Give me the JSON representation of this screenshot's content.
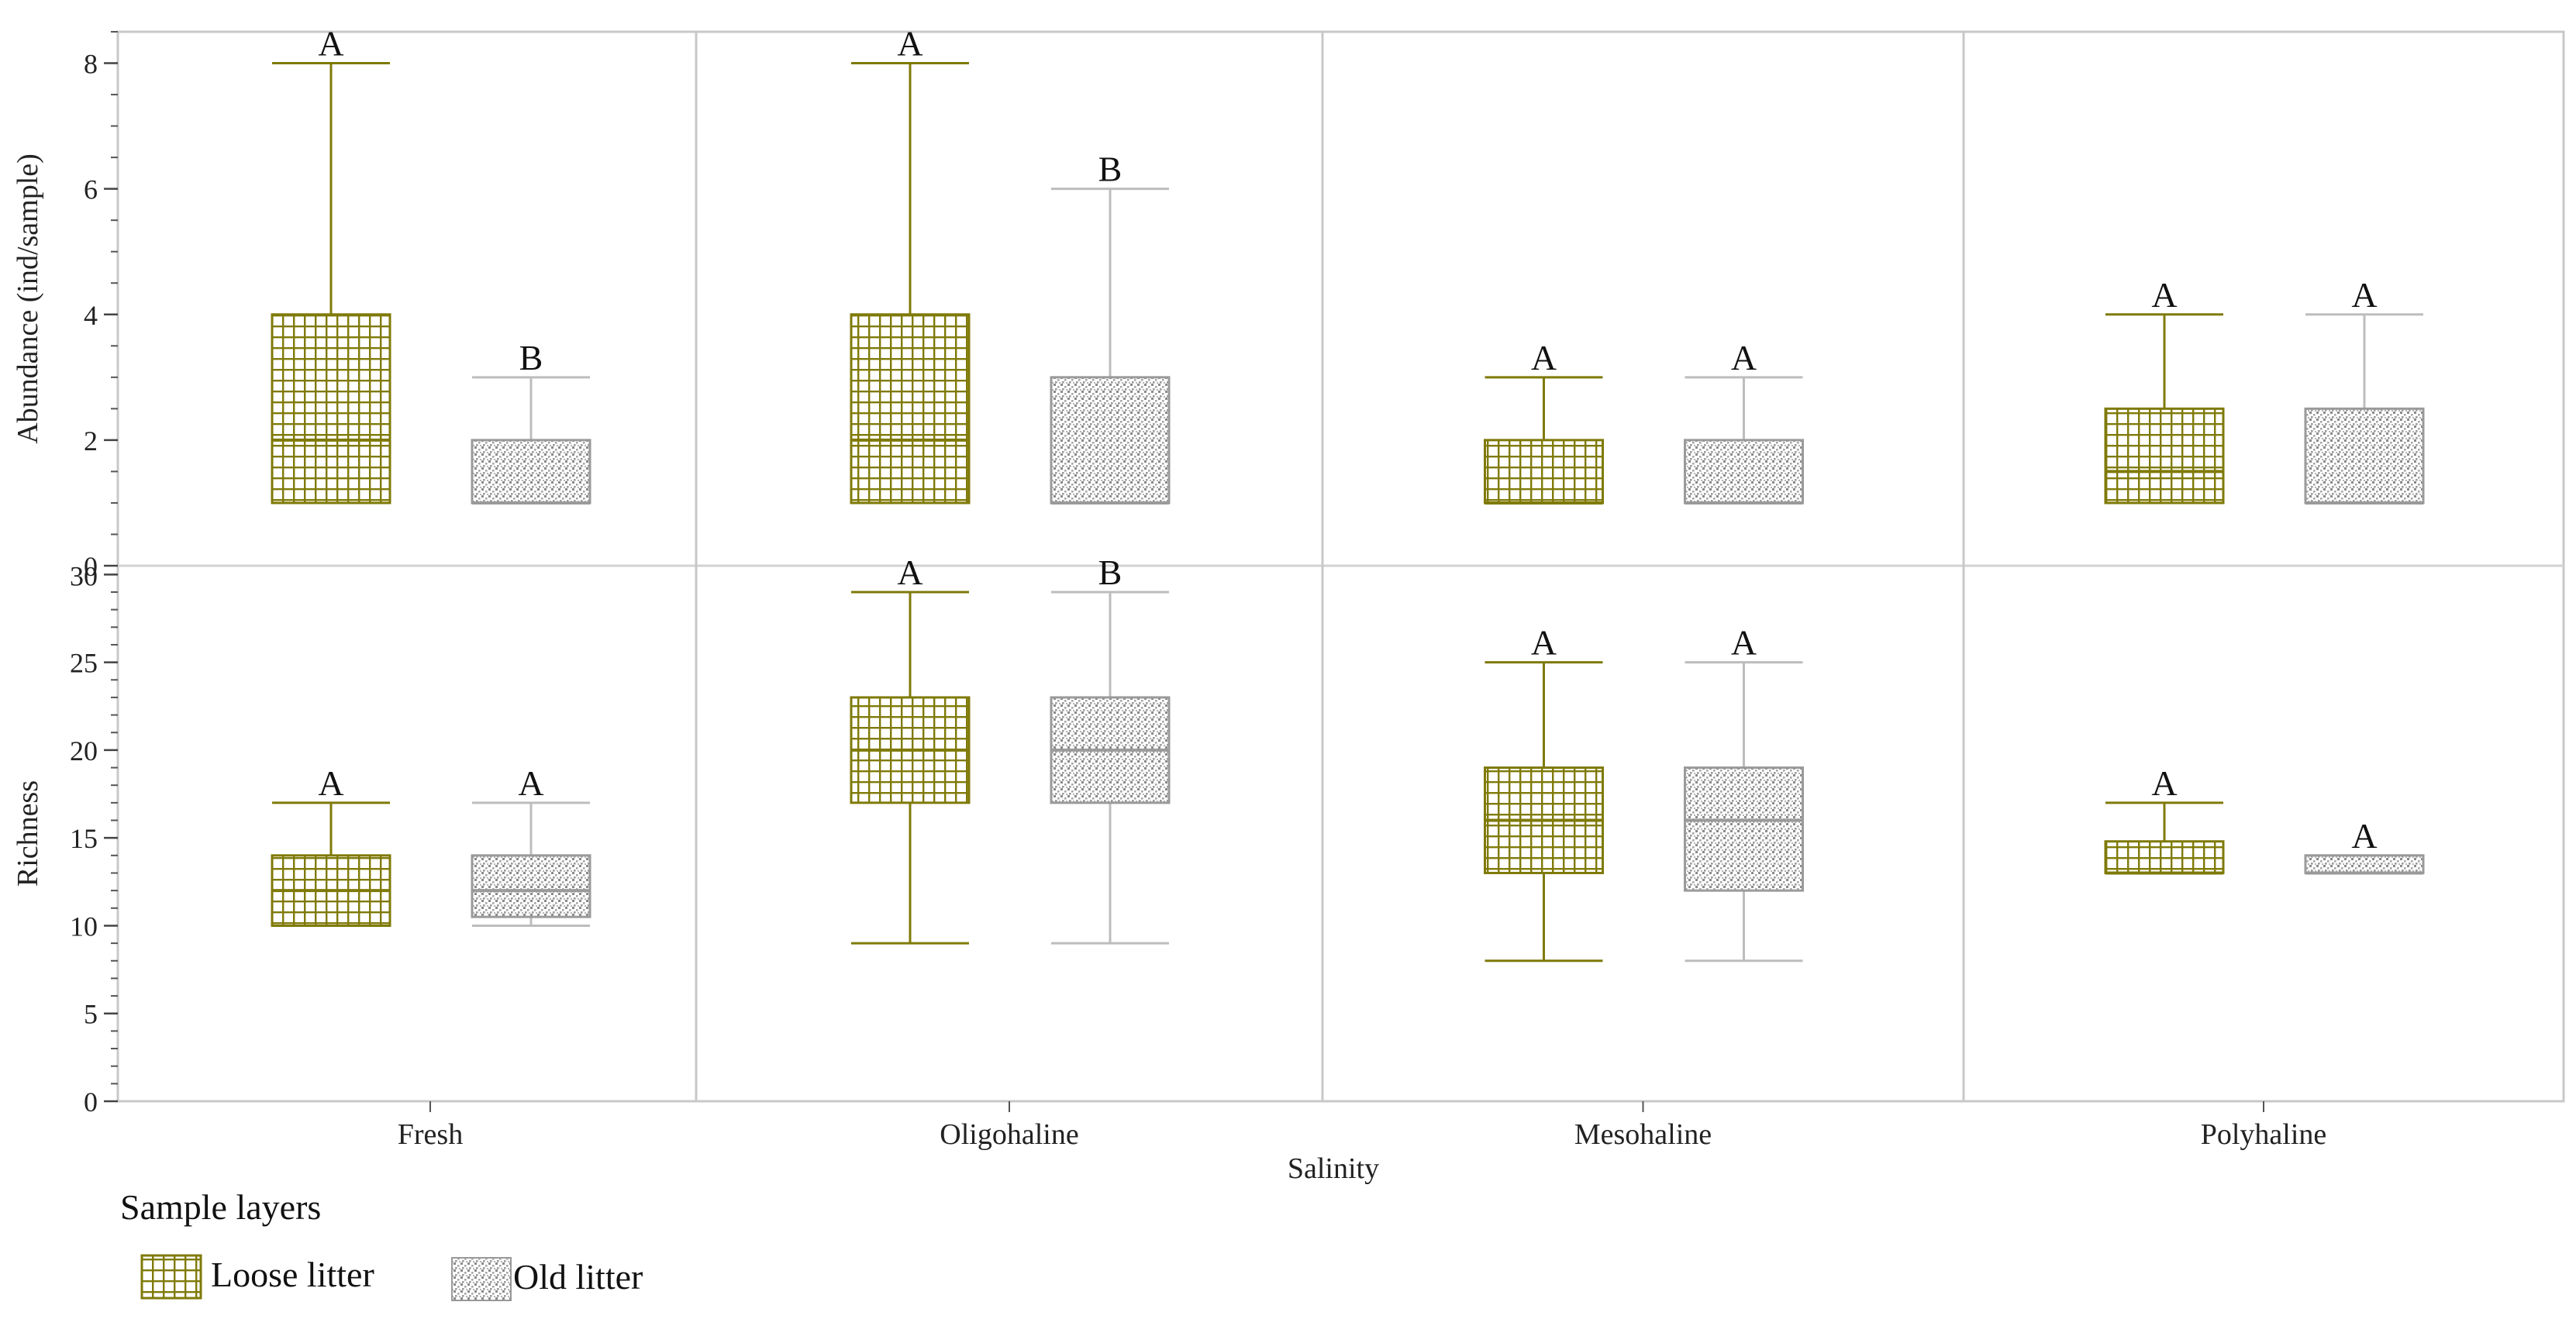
{
  "chart_data": {
    "type": "boxplot",
    "xlabel": "Salinity",
    "categories": [
      "Fresh",
      "Oligohaline",
      "Mesohaline",
      "Polyhaline"
    ],
    "legend": {
      "title": "Sample layers",
      "items": [
        {
          "name": "Loose litter",
          "pattern": "grid",
          "color": "#7f7a08"
        },
        {
          "name": "Old litter",
          "pattern": "dots",
          "color": "#a0a0a0"
        }
      ]
    },
    "panels": [
      {
        "ylabel": "Abundance (ind/sample)",
        "ylim": [
          0,
          8.5
        ],
        "ticks": [
          0,
          2,
          4,
          6,
          8
        ],
        "minor_step": 0.5,
        "series": [
          {
            "name": "Loose litter",
            "boxes": [
              {
                "min": 1,
                "q1": 1,
                "median": 2,
                "q3": 4,
                "max": 8,
                "letter": "A"
              },
              {
                "min": 1,
                "q1": 1,
                "median": 2,
                "q3": 4,
                "max": 8,
                "letter": "A"
              },
              {
                "min": 1,
                "q1": 1,
                "median": 1,
                "q3": 2,
                "max": 3,
                "letter": "A"
              },
              {
                "min": 1,
                "q1": 1,
                "median": 1.5,
                "q3": 2.5,
                "max": 4,
                "letter": "A"
              }
            ]
          },
          {
            "name": "Old litter",
            "boxes": [
              {
                "min": 1,
                "q1": 1,
                "median": 1,
                "q3": 2,
                "max": 3,
                "letter": "B"
              },
              {
                "min": 1,
                "q1": 1,
                "median": 1,
                "q3": 3,
                "max": 6,
                "letter": "B"
              },
              {
                "min": 1,
                "q1": 1,
                "median": 1,
                "q3": 2,
                "max": 3,
                "letter": "A"
              },
              {
                "min": 1,
                "q1": 1,
                "median": 1,
                "q3": 2.5,
                "max": 4,
                "letter": "A"
              }
            ]
          }
        ]
      },
      {
        "ylabel": "Richness",
        "ylim": [
          0,
          30.5
        ],
        "ticks": [
          0,
          5,
          10,
          15,
          20,
          25,
          30
        ],
        "minor_step": 1,
        "series": [
          {
            "name": "Loose litter",
            "boxes": [
              {
                "min": 10,
                "q1": 10,
                "median": 12,
                "q3": 14,
                "max": 17,
                "letter": "A"
              },
              {
                "min": 9,
                "q1": 17,
                "median": 20,
                "q3": 23,
                "max": 29,
                "letter": "A"
              },
              {
                "min": 8,
                "q1": 13,
                "median": 16,
                "q3": 19,
                "max": 25,
                "letter": "A"
              },
              {
                "min": 13,
                "q1": 13,
                "median": 13,
                "q3": 14.8,
                "max": 17,
                "letter": "A"
              }
            ]
          },
          {
            "name": "Old litter",
            "boxes": [
              {
                "min": 10,
                "q1": 10.5,
                "median": 12,
                "q3": 14,
                "max": 17,
                "letter": "A"
              },
              {
                "min": 9,
                "q1": 17,
                "median": 20,
                "q3": 23,
                "max": 29,
                "letter": "B"
              },
              {
                "min": 8,
                "q1": 12,
                "median": 16,
                "q3": 19,
                "max": 25,
                "letter": "A"
              },
              {
                "min": 13,
                "q1": 13,
                "median": 13,
                "q3": 14,
                "max": 14,
                "letter": "A"
              }
            ]
          }
        ]
      }
    ]
  }
}
